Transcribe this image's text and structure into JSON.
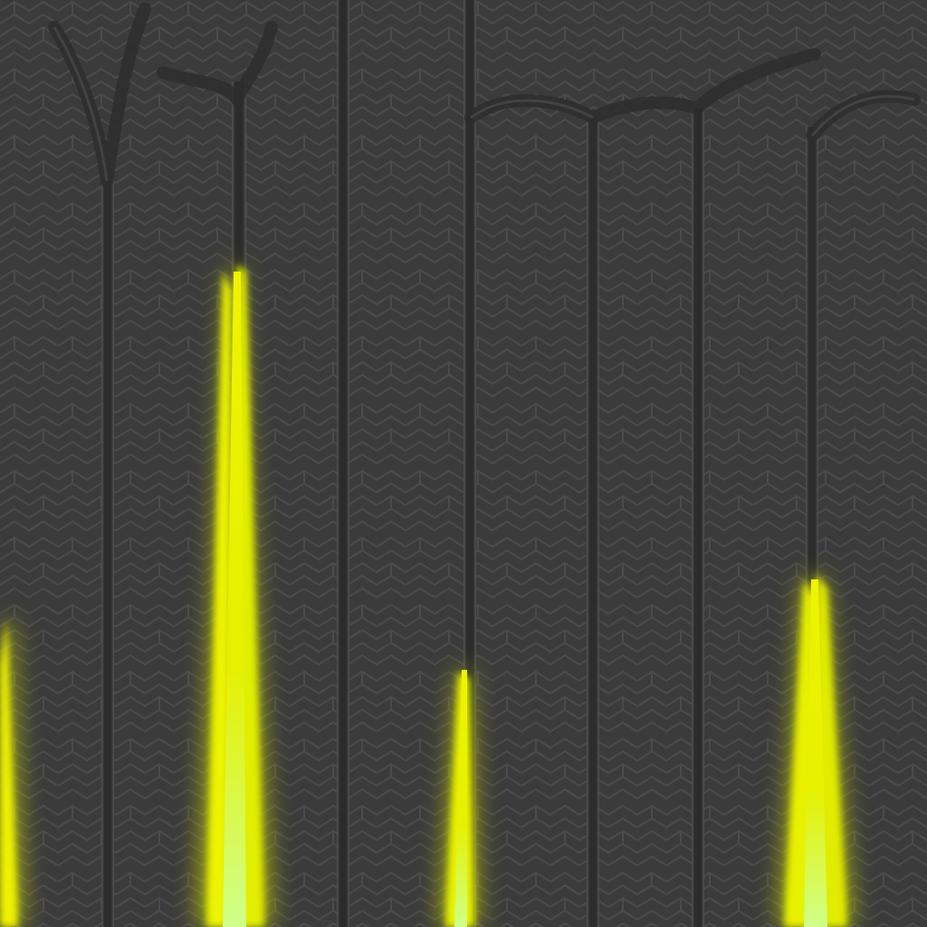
{
  "texture": {
    "background_color": "#3b3b3b",
    "pattern_color": "#4a4a4a",
    "groove_color": "#2a2a2a",
    "groove_edge_color": "#505050",
    "glow_color": "#e8f000",
    "glow_core_color": "#f6ff6a",
    "glow_halo_color": "#c8d200",
    "glow_shapes": [
      "left-edge-glow",
      "tall-spike-glow",
      "short-spike-glow",
      "medium-spike-glow"
    ]
  }
}
